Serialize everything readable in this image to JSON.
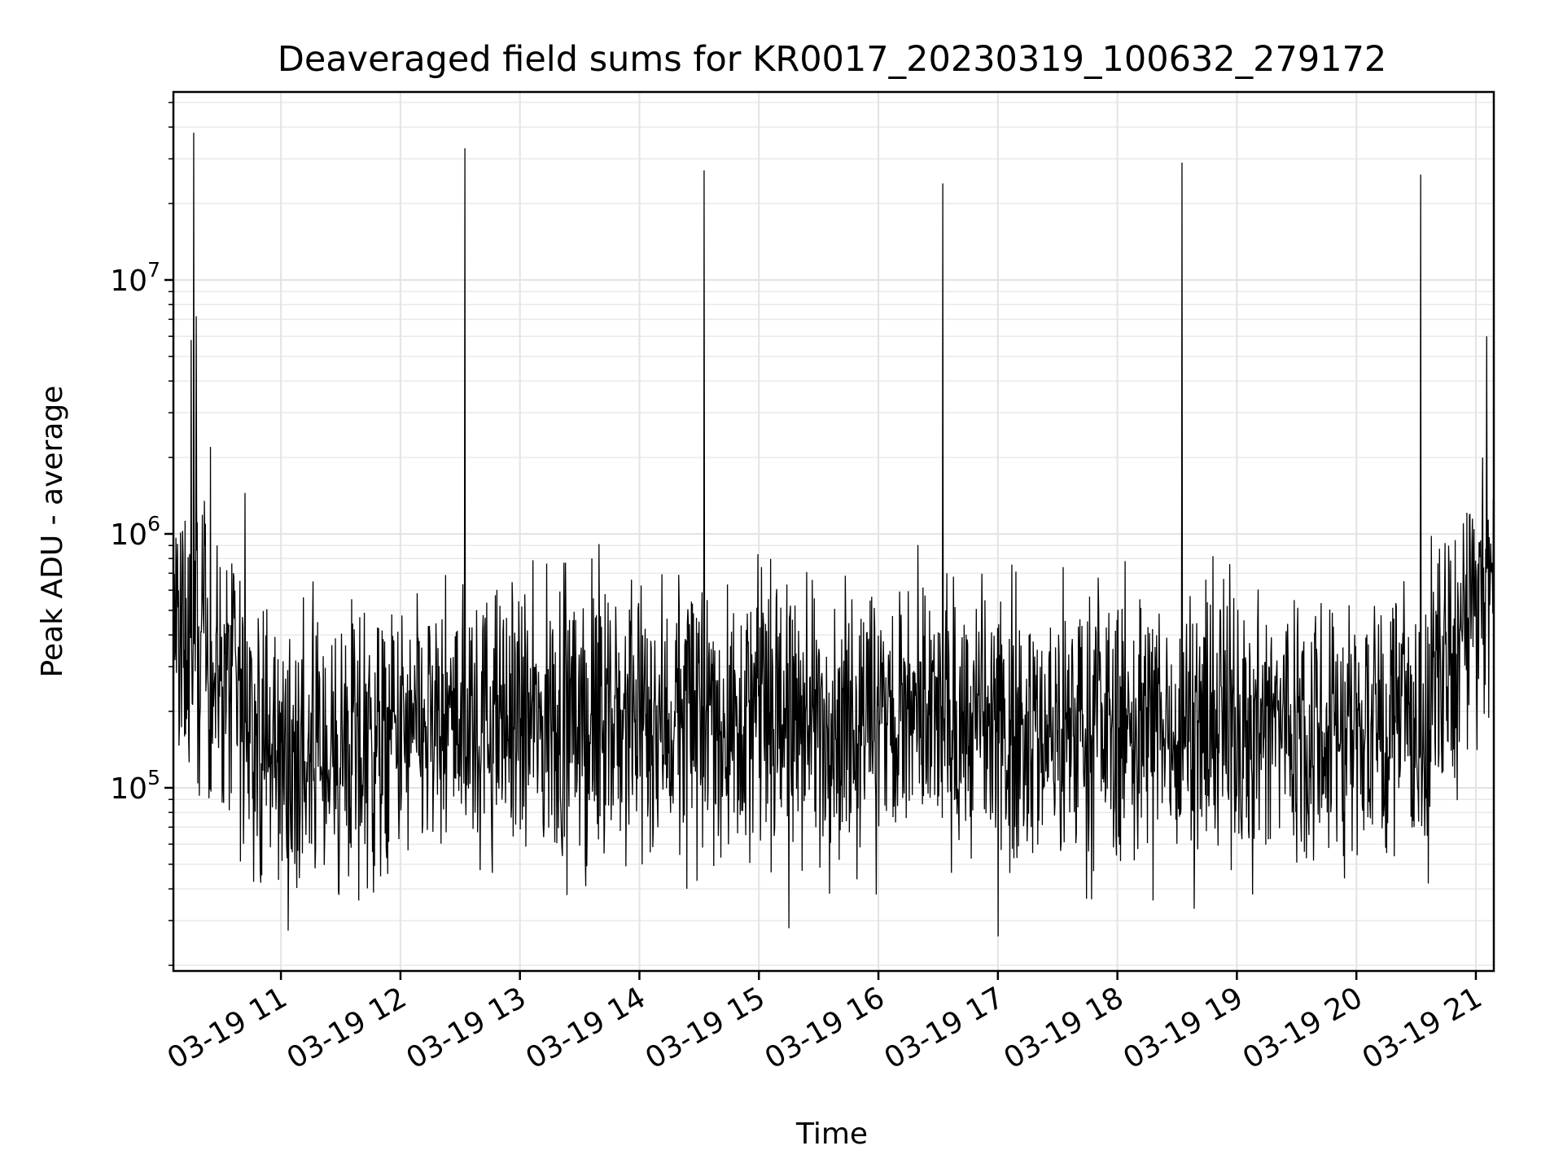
{
  "chart_data": {
    "type": "line",
    "title": "Deaveraged field sums for KR0017_20230319_100632_279172",
    "xlabel": "Time",
    "ylabel": "Peak ADU - average",
    "yscale": "log",
    "ylim": [
      19000,
      55000000
    ],
    "xlim_hours": [
      10.1,
      21.15
    ],
    "grid": true,
    "x_ticks": [
      {
        "label": "03-19 11",
        "hour": 11
      },
      {
        "label": "03-19 12",
        "hour": 12
      },
      {
        "label": "03-19 13",
        "hour": 13
      },
      {
        "label": "03-19 14",
        "hour": 14
      },
      {
        "label": "03-19 15",
        "hour": 15
      },
      {
        "label": "03-19 16",
        "hour": 16
      },
      {
        "label": "03-19 17",
        "hour": 17
      },
      {
        "label": "03-19 18",
        "hour": 18
      },
      {
        "label": "03-19 19",
        "hour": 19
      },
      {
        "label": "03-19 20",
        "hour": 20
      },
      {
        "label": "03-19 21",
        "hour": 21
      }
    ],
    "y_ticks": [
      {
        "base": "10",
        "exp": "5",
        "value": 100000
      },
      {
        "base": "10",
        "exp": "6",
        "value": 1000000
      },
      {
        "base": "10",
        "exp": "7",
        "value": 10000000
      }
    ],
    "baseline_hours": [
      10.1,
      10.3,
      10.6,
      10.8,
      11.0,
      11.5,
      12.0,
      12.5,
      13.0,
      14.0,
      15.0,
      16.0,
      17.0,
      18.0,
      19.0,
      20.0,
      20.6,
      20.62,
      20.8,
      21.0,
      21.15
    ],
    "baseline_values": [
      450000,
      330000,
      260000,
      150000,
      130000,
      135000,
      150000,
      180000,
      175000,
      180000,
      190000,
      185000,
      170000,
      175000,
      185000,
      175000,
      170000,
      250000,
      300000,
      550000,
      650000
    ],
    "spikes": [
      {
        "hour": 10.27,
        "value": 38000000
      },
      {
        "hour": 10.29,
        "value": 7200000
      },
      {
        "hour": 10.25,
        "value": 5800000
      },
      {
        "hour": 10.41,
        "value": 2200000
      },
      {
        "hour": 10.36,
        "value": 1350000
      },
      {
        "hour": 10.7,
        "value": 1450000
      },
      {
        "hour": 12.54,
        "value": 33000000
      },
      {
        "hour": 14.54,
        "value": 27000000
      },
      {
        "hour": 16.54,
        "value": 24000000
      },
      {
        "hour": 18.54,
        "value": 29000000
      },
      {
        "hour": 20.54,
        "value": 26000000
      },
      {
        "hour": 21.09,
        "value": 6000000
      },
      {
        "hour": 13.38,
        "value": 770000
      },
      {
        "hour": 15.02,
        "value": 740000
      },
      {
        "hour": 11.27,
        "value": 650000
      },
      {
        "hour": 18.74,
        "value": 660000
      }
    ],
    "dips": [
      {
        "hour": 17.0,
        "value": 26000
      },
      {
        "hour": 15.25,
        "value": 28000
      },
      {
        "hour": 11.65,
        "value": 36000
      },
      {
        "hour": 15.98,
        "value": 38000
      },
      {
        "hour": 19.13,
        "value": 38000
      },
      {
        "hour": 18.3,
        "value": 36000
      },
      {
        "hour": 13.55,
        "value": 41000
      },
      {
        "hour": 20.6,
        "value": 42000
      },
      {
        "hour": 19.9,
        "value": 44000
      }
    ]
  }
}
